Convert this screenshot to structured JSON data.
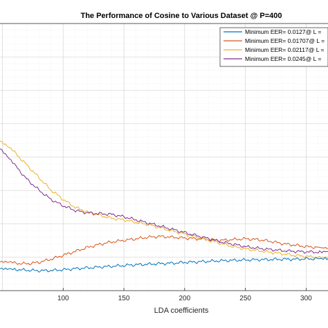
{
  "chart_data": {
    "type": "line",
    "title": "The Performance of Cosine to Various Dataset @ P=400",
    "xlabel": "LDA coefficients",
    "ylabel": "",
    "xlim": [
      48,
      318
    ],
    "ylim": [
      0.0,
      0.17
    ],
    "xticks": [
      100,
      150,
      200,
      250,
      300
    ],
    "xtick_labels": [
      "100",
      "150",
      "200",
      "250",
      "300"
    ],
    "grid": true,
    "minor_grid": true,
    "legend_position": "top-right",
    "series": [
      {
        "name": "Minimum EER= 0.0127@ L =",
        "color": "#0072BD",
        "x": [
          48,
          60,
          70,
          80,
          90,
          100,
          110,
          120,
          130,
          140,
          150,
          160,
          170,
          180,
          190,
          200,
          210,
          220,
          230,
          240,
          250,
          260,
          270,
          280,
          290,
          300,
          310,
          318
        ],
        "y": [
          0.0145,
          0.0135,
          0.013,
          0.0127,
          0.0128,
          0.0133,
          0.014,
          0.0145,
          0.015,
          0.0155,
          0.016,
          0.0165,
          0.0168,
          0.0172,
          0.0175,
          0.018,
          0.0183,
          0.0187,
          0.019,
          0.0193,
          0.0195,
          0.0197,
          0.0198,
          0.02,
          0.02,
          0.0202,
          0.0203,
          0.0205
        ]
      },
      {
        "name": "Minimum EER= 0.01707@ L =",
        "color": "#D95319",
        "x": [
          48,
          60,
          70,
          80,
          90,
          100,
          110,
          120,
          130,
          140,
          150,
          160,
          170,
          180,
          190,
          200,
          210,
          220,
          230,
          240,
          250,
          260,
          270,
          280,
          290,
          300,
          310,
          318
        ],
        "y": [
          0.0185,
          0.0175,
          0.0171,
          0.018,
          0.02,
          0.0225,
          0.025,
          0.0275,
          0.0295,
          0.031,
          0.032,
          0.033,
          0.034,
          0.0345,
          0.034,
          0.0335,
          0.033,
          0.0325,
          0.032,
          0.0325,
          0.033,
          0.0325,
          0.0315,
          0.03,
          0.029,
          0.028,
          0.0275,
          0.027
        ]
      },
      {
        "name": "Minimum EER= 0.02117@ L =",
        "color": "#EDB120",
        "x": [
          48,
          60,
          70,
          80,
          90,
          100,
          110,
          120,
          130,
          140,
          150,
          160,
          170,
          180,
          190,
          200,
          210,
          220,
          230,
          240,
          250,
          260,
          270,
          280,
          290,
          300,
          310,
          318
        ],
        "y": [
          0.095,
          0.088,
          0.08,
          0.072,
          0.064,
          0.058,
          0.053,
          0.05,
          0.048,
          0.046,
          0.045,
          0.0435,
          0.042,
          0.04,
          0.038,
          0.036,
          0.034,
          0.032,
          0.03,
          0.028,
          0.0265,
          0.0255,
          0.0245,
          0.0235,
          0.0225,
          0.0218,
          0.0213,
          0.0212
        ]
      },
      {
        "name": "Minimum EER= 0.0245@ L =",
        "color": "#7E2F8E",
        "x": [
          48,
          60,
          70,
          80,
          90,
          100,
          110,
          120,
          130,
          140,
          150,
          160,
          170,
          180,
          190,
          200,
          210,
          220,
          230,
          240,
          250,
          260,
          270,
          280,
          290,
          300,
          310,
          318
        ],
        "y": [
          0.09,
          0.08,
          0.071,
          0.064,
          0.058,
          0.054,
          0.051,
          0.0495,
          0.049,
          0.0485,
          0.047,
          0.045,
          0.043,
          0.041,
          0.039,
          0.037,
          0.035,
          0.033,
          0.031,
          0.0295,
          0.028,
          0.027,
          0.0262,
          0.0255,
          0.025,
          0.0247,
          0.0245,
          0.025
        ]
      }
    ]
  }
}
